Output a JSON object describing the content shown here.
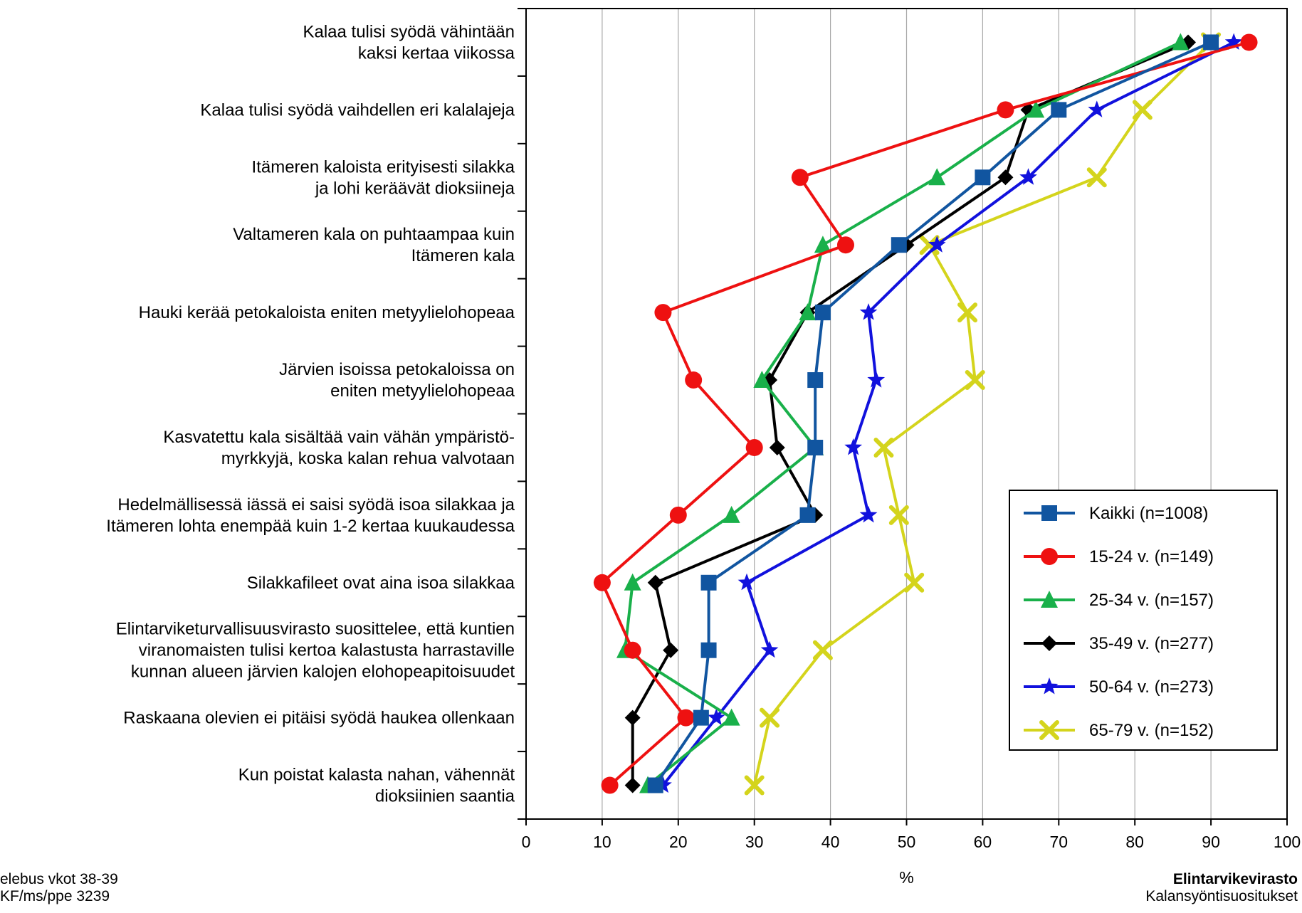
{
  "chart_data": {
    "type": "line",
    "orientation": "horizontal-categories",
    "xlabel": "%",
    "xlim": [
      0,
      100
    ],
    "xticks": [
      "0",
      "10",
      "20",
      "30",
      "40",
      "50",
      "60",
      "70",
      "80",
      "90",
      "100"
    ],
    "grid": "vertical",
    "legend_position": "lower-right",
    "categories": [
      [
        "Kalaa tulisi syödä vähintään",
        "kaksi kertaa viikossa"
      ],
      [
        "Kalaa tulisi syödä vaihdellen eri kalalajeja"
      ],
      [
        "Itämeren kaloista erityisesti silakka",
        "ja lohi keräävät dioksiineja"
      ],
      [
        "Valtameren kala on puhtaampaa kuin",
        "Itämeren kala"
      ],
      [
        "Hauki kerää petokaloista eniten metyylielohopeaa"
      ],
      [
        "Järvien isoissa petokaloissa on",
        "eniten metyylielohopeaa"
      ],
      [
        "Kasvatettu kala sisältää vain vähän ympäristö-",
        "myrkkyjä, koska kalan rehua valvotaan"
      ],
      [
        "Hedelmällisessä iässä ei saisi syödä isoa silakkaa ja",
        "Itämeren lohta enempää kuin 1-2 kertaa kuukaudessa"
      ],
      [
        "Silakkafileet ovat aina isoa silakkaa"
      ],
      [
        "Elintarviketurvallisuusvirasto suosittelee, että kuntien",
        "viranomaisten tulisi kertoa kalastusta harrastaville",
        "kunnan alueen järvien kalojen elohopeapitoisuudet"
      ],
      [
        "Raskaana olevien ei pitäisi syödä haukea ollenkaan"
      ],
      [
        "Kun poistat kalasta nahan, vähennät",
        "dioksiinien saantia"
      ]
    ],
    "series": [
      {
        "name": "Kaikki (n=1008)",
        "color": "#1155a0",
        "marker": "square",
        "values": [
          90,
          70,
          60,
          49,
          39,
          38,
          38,
          37,
          24,
          24,
          23,
          17
        ]
      },
      {
        "name": "15-24 v. (n=149)",
        "color": "#ee1111",
        "marker": "circle",
        "values": [
          95,
          63,
          36,
          42,
          18,
          22,
          30,
          20,
          10,
          14,
          21,
          11
        ]
      },
      {
        "name": "25-34 v. (n=157)",
        "color": "#19b04a",
        "marker": "triangle",
        "values": [
          86,
          67,
          54,
          39,
          37,
          31,
          38,
          27,
          14,
          13,
          27,
          16
        ]
      },
      {
        "name": "35-49 v. (n=277)",
        "color": "#000000",
        "marker": "diamond",
        "values": [
          87,
          66,
          63,
          50,
          37,
          32,
          33,
          38,
          17,
          19,
          14,
          14
        ]
      },
      {
        "name": "50-64 v. (n=273)",
        "color": "#1111dd",
        "marker": "star",
        "values": [
          93,
          75,
          66,
          54,
          45,
          46,
          43,
          45,
          29,
          32,
          25,
          18
        ]
      },
      {
        "name": "65-79 v. (n=152)",
        "color": "#d4d41c",
        "marker": "x",
        "values": [
          90,
          81,
          75,
          53,
          58,
          59,
          47,
          49,
          51,
          39,
          32,
          30
        ]
      }
    ]
  },
  "footer": {
    "left_line1": "elebus vkot 38-39",
    "left_line2": "KF/ms/ppe  3239",
    "org": "Elintarvikevirasto",
    "subtitle": "Kalansyöntisuositukset"
  }
}
